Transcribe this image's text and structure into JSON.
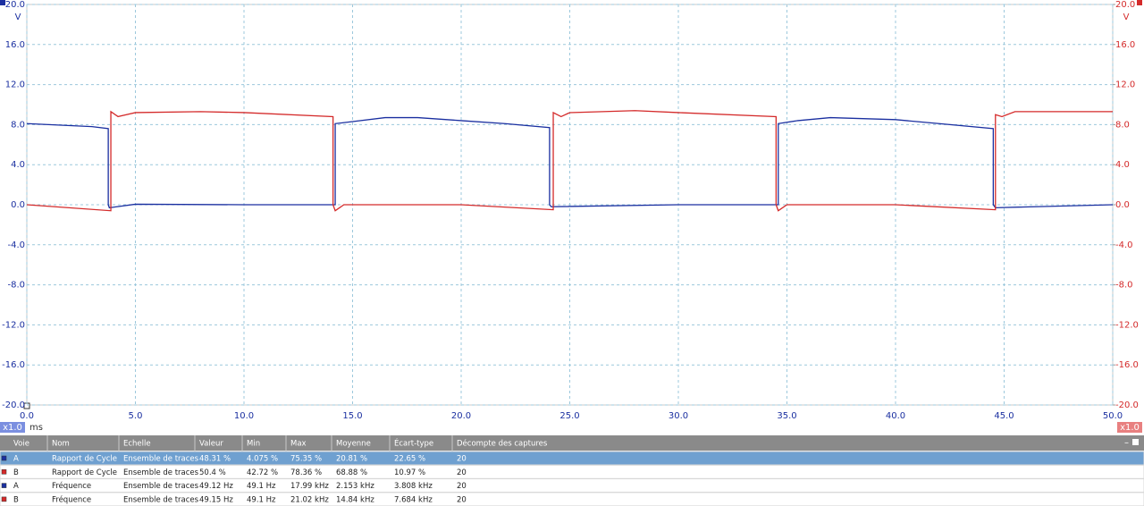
{
  "chart_data": {
    "type": "line",
    "y_unit": "V",
    "y2_unit": "V",
    "x_unit": "ms",
    "x_scale_left": "x1.0",
    "x_scale_right": "x1.0",
    "xlim": [
      0,
      50
    ],
    "xticks": [
      {
        "value": 0,
        "label": "0.0"
      },
      {
        "value": 5,
        "label": "5.0"
      },
      {
        "value": 10,
        "label": "10.0"
      },
      {
        "value": 15,
        "label": "15.0"
      },
      {
        "value": 20,
        "label": "20.0"
      },
      {
        "value": 25,
        "label": "25.0"
      },
      {
        "value": 30,
        "label": "30.0"
      },
      {
        "value": 35,
        "label": "35.0"
      },
      {
        "value": 40,
        "label": "40.0"
      },
      {
        "value": 45,
        "label": "45.0"
      },
      {
        "value": 50,
        "label": "50.0"
      }
    ],
    "ylim": [
      -20,
      20
    ],
    "yticks": [
      {
        "value": -20,
        "label": "-20.0"
      },
      {
        "value": -16,
        "label": "-16.0"
      },
      {
        "value": -12,
        "label": "-12.0"
      },
      {
        "value": -8,
        "label": "-8.0"
      },
      {
        "value": -4,
        "label": "-4.0"
      },
      {
        "value": 0,
        "label": "0.0"
      },
      {
        "value": 4,
        "label": "4.0"
      },
      {
        "value": 8,
        "label": "8.0"
      },
      {
        "value": 12,
        "label": "12.0"
      },
      {
        "value": 16,
        "label": "16.0"
      },
      {
        "value": 20,
        "label": "20.0"
      }
    ],
    "y2lim": [
      -20,
      20
    ],
    "y2ticks": [
      {
        "value": -20,
        "label": "-20.0"
      },
      {
        "value": -16,
        "label": "-16.0"
      },
      {
        "value": -12,
        "label": "-12.0"
      },
      {
        "value": -8,
        "label": "-8.0"
      },
      {
        "value": -4,
        "label": "-4.0"
      },
      {
        "value": 0,
        "label": "0.0"
      },
      {
        "value": 4,
        "label": "4.0"
      },
      {
        "value": 8,
        "label": "8.0"
      },
      {
        "value": 12,
        "label": "12.0"
      },
      {
        "value": 16,
        "label": "16.0"
      },
      {
        "value": 20,
        "label": "20.0"
      }
    ],
    "grid": true,
    "series": [
      {
        "name": "A",
        "color": "#1a2fa0",
        "axis": "y",
        "x": [
          0,
          1,
          2,
          3,
          3.75,
          3.75,
          3.8,
          5,
          10,
          14.2,
          14.2,
          15,
          16.5,
          18,
          20,
          22,
          24.07,
          24.07,
          24.15,
          30,
          34.6,
          34.6,
          35.5,
          37,
          40,
          42,
          44.5,
          44.5,
          44.6,
          50
        ],
        "values": [
          8.1,
          8.0,
          7.9,
          7.8,
          7.6,
          0,
          -0.3,
          0.05,
          0,
          0,
          8.1,
          8.3,
          8.7,
          8.7,
          8.4,
          8.1,
          7.7,
          0,
          -0.2,
          0,
          0,
          8.1,
          8.4,
          8.7,
          8.5,
          8.1,
          7.6,
          0,
          -0.3,
          0
        ]
      },
      {
        "name": "B",
        "color": "#d42a2a",
        "axis": "y2",
        "x": [
          0,
          3.87,
          3.87,
          4.2,
          5,
          8,
          10,
          14.1,
          14.1,
          14.2,
          14.6,
          20,
          24.24,
          24.24,
          24.6,
          25,
          28,
          30,
          34.5,
          34.5,
          34.6,
          35,
          40,
          44.6,
          44.6,
          44.9,
          45.5,
          50
        ],
        "values": [
          0,
          -0.6,
          9.3,
          8.8,
          9.2,
          9.3,
          9.2,
          8.8,
          0,
          -0.6,
          0,
          0,
          -0.5,
          9.2,
          8.8,
          9.2,
          9.4,
          9.2,
          8.8,
          0,
          -0.6,
          0,
          0,
          -0.5,
          9.0,
          8.8,
          9.3,
          9.3
        ]
      }
    ]
  },
  "table": {
    "columns": [
      "Voie",
      "Nom",
      "Echelle",
      "Valeur",
      "Min",
      "Max",
      "Moyenne",
      "Écart-type",
      "Décompte des captures"
    ],
    "selected_row": 0,
    "rows": [
      [
        "A",
        "Rapport de Cycle",
        "Ensemble de traces",
        "48.31 %",
        "4.075 %",
        "75.35 %",
        "20.81 %",
        "22.65 %",
        "20"
      ],
      [
        "B",
        "Rapport de Cycle",
        "Ensemble de traces",
        "50.4 %",
        "42.72 %",
        "78.36 %",
        "68.88 %",
        "10.97 %",
        "20"
      ],
      [
        "A",
        "Fréquence",
        "Ensemble de traces",
        "49.12 Hz",
        "49.1 Hz",
        "17.99 kHz",
        "2.153 kHz",
        "3.808 kHz",
        "20"
      ],
      [
        "B",
        "Fréquence",
        "Ensemble de traces",
        "49.15 Hz",
        "49.1 Hz",
        "21.02 kHz",
        "14.84 kHz",
        "7.684 kHz",
        "20"
      ]
    ]
  }
}
